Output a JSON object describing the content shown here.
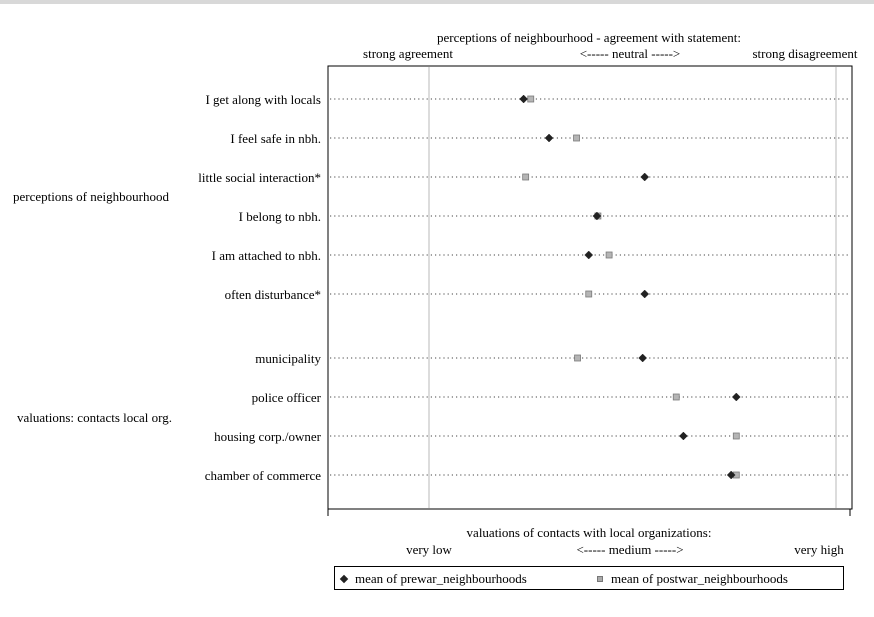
{
  "chart_data": {
    "type": "scatter",
    "top_title": "perceptions of neighbourhood - agreement with statement:",
    "top_scale_labels": [
      "strong agreement",
      "<----- neutral ----->",
      "strong disagreement"
    ],
    "bottom_title": "valuations of contacts with local organizations:",
    "bottom_scale_labels": [
      "very low",
      "<----- medium ----->",
      "very high"
    ],
    "xlim": [
      0.5,
      5.6
    ],
    "reference_lines": [
      1,
      5
    ],
    "groups": [
      {
        "label": "perceptions of neighbourhood",
        "items": [
          {
            "label": "I get along with locals",
            "prewar": 1.93,
            "postwar": 2.0
          },
          {
            "label": "I feel safe in nbh.",
            "prewar": 2.18,
            "postwar": 2.45
          },
          {
            "label": "little social interaction*",
            "prewar": 3.12,
            "postwar": 1.95
          },
          {
            "label": "I belong to nbh.",
            "prewar": 2.65,
            "postwar": 2.66
          },
          {
            "label": "I am attached to nbh.",
            "prewar": 2.57,
            "postwar": 2.77
          },
          {
            "label": "often disturbance*",
            "prewar": 3.12,
            "postwar": 2.57
          }
        ]
      },
      {
        "label": "valuations: contacts local org.",
        "items": [
          {
            "label": "municipality",
            "prewar": 3.1,
            "postwar": 2.46
          },
          {
            "label": "police officer",
            "prewar": 4.02,
            "postwar": 3.43
          },
          {
            "label": "housing corp./owner",
            "prewar": 3.5,
            "postwar": 4.02
          },
          {
            "label": "chamber of commerce",
            "prewar": 3.97,
            "postwar": 4.02
          }
        ]
      }
    ],
    "series": [
      {
        "name": "mean of prewar_neighbourhoods",
        "key": "prewar",
        "marker": "diamond",
        "color": "#222222"
      },
      {
        "name": "mean of postwar_neighbourhoods",
        "key": "postwar",
        "marker": "square",
        "color": "#aaaaaa"
      }
    ]
  }
}
